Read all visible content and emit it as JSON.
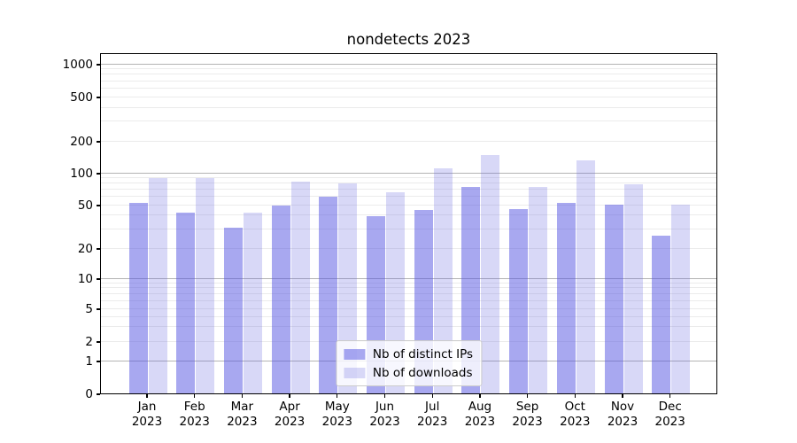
{
  "chart_data": {
    "type": "bar",
    "title": "nondetects 2023",
    "categories": [
      "Jan 2023",
      "Feb 2023",
      "Mar 2023",
      "Apr 2023",
      "May 2023",
      "Jun 2023",
      "Jul 2023",
      "Aug 2023",
      "Sep 2023",
      "Oct 2023",
      "Nov 2023",
      "Dec 2023"
    ],
    "series": [
      {
        "name": "Nb of distinct IPs",
        "color": "#a8a8f0",
        "fill": "rgba(81,81,225,0.5)",
        "values": [
          52,
          42,
          31,
          49,
          59,
          39,
          45,
          73,
          46,
          52,
          50,
          26
        ]
      },
      {
        "name": "Nb of downloads",
        "color": "#d8d8f7",
        "fill": "rgba(99,99,223,0.25)",
        "values": [
          90,
          90,
          42,
          82,
          79,
          65,
          111,
          146,
          74,
          130,
          78,
          50
        ]
      }
    ],
    "xlabel": "",
    "ylabel": "",
    "yscale": "symlog",
    "yticks": [
      0,
      1,
      2,
      5,
      10,
      20,
      50,
      100,
      200,
      500,
      1000
    ],
    "ylim": [
      0,
      1300
    ],
    "grid": true,
    "legend_position": "lower center"
  },
  "colors": {
    "grid_major": "#b4b4b4",
    "grid_minor": "#ebebeb",
    "axis": "#000000",
    "legend_border": "#cccccc",
    "legend_background": "rgba(255,255,255,0.8)"
  }
}
